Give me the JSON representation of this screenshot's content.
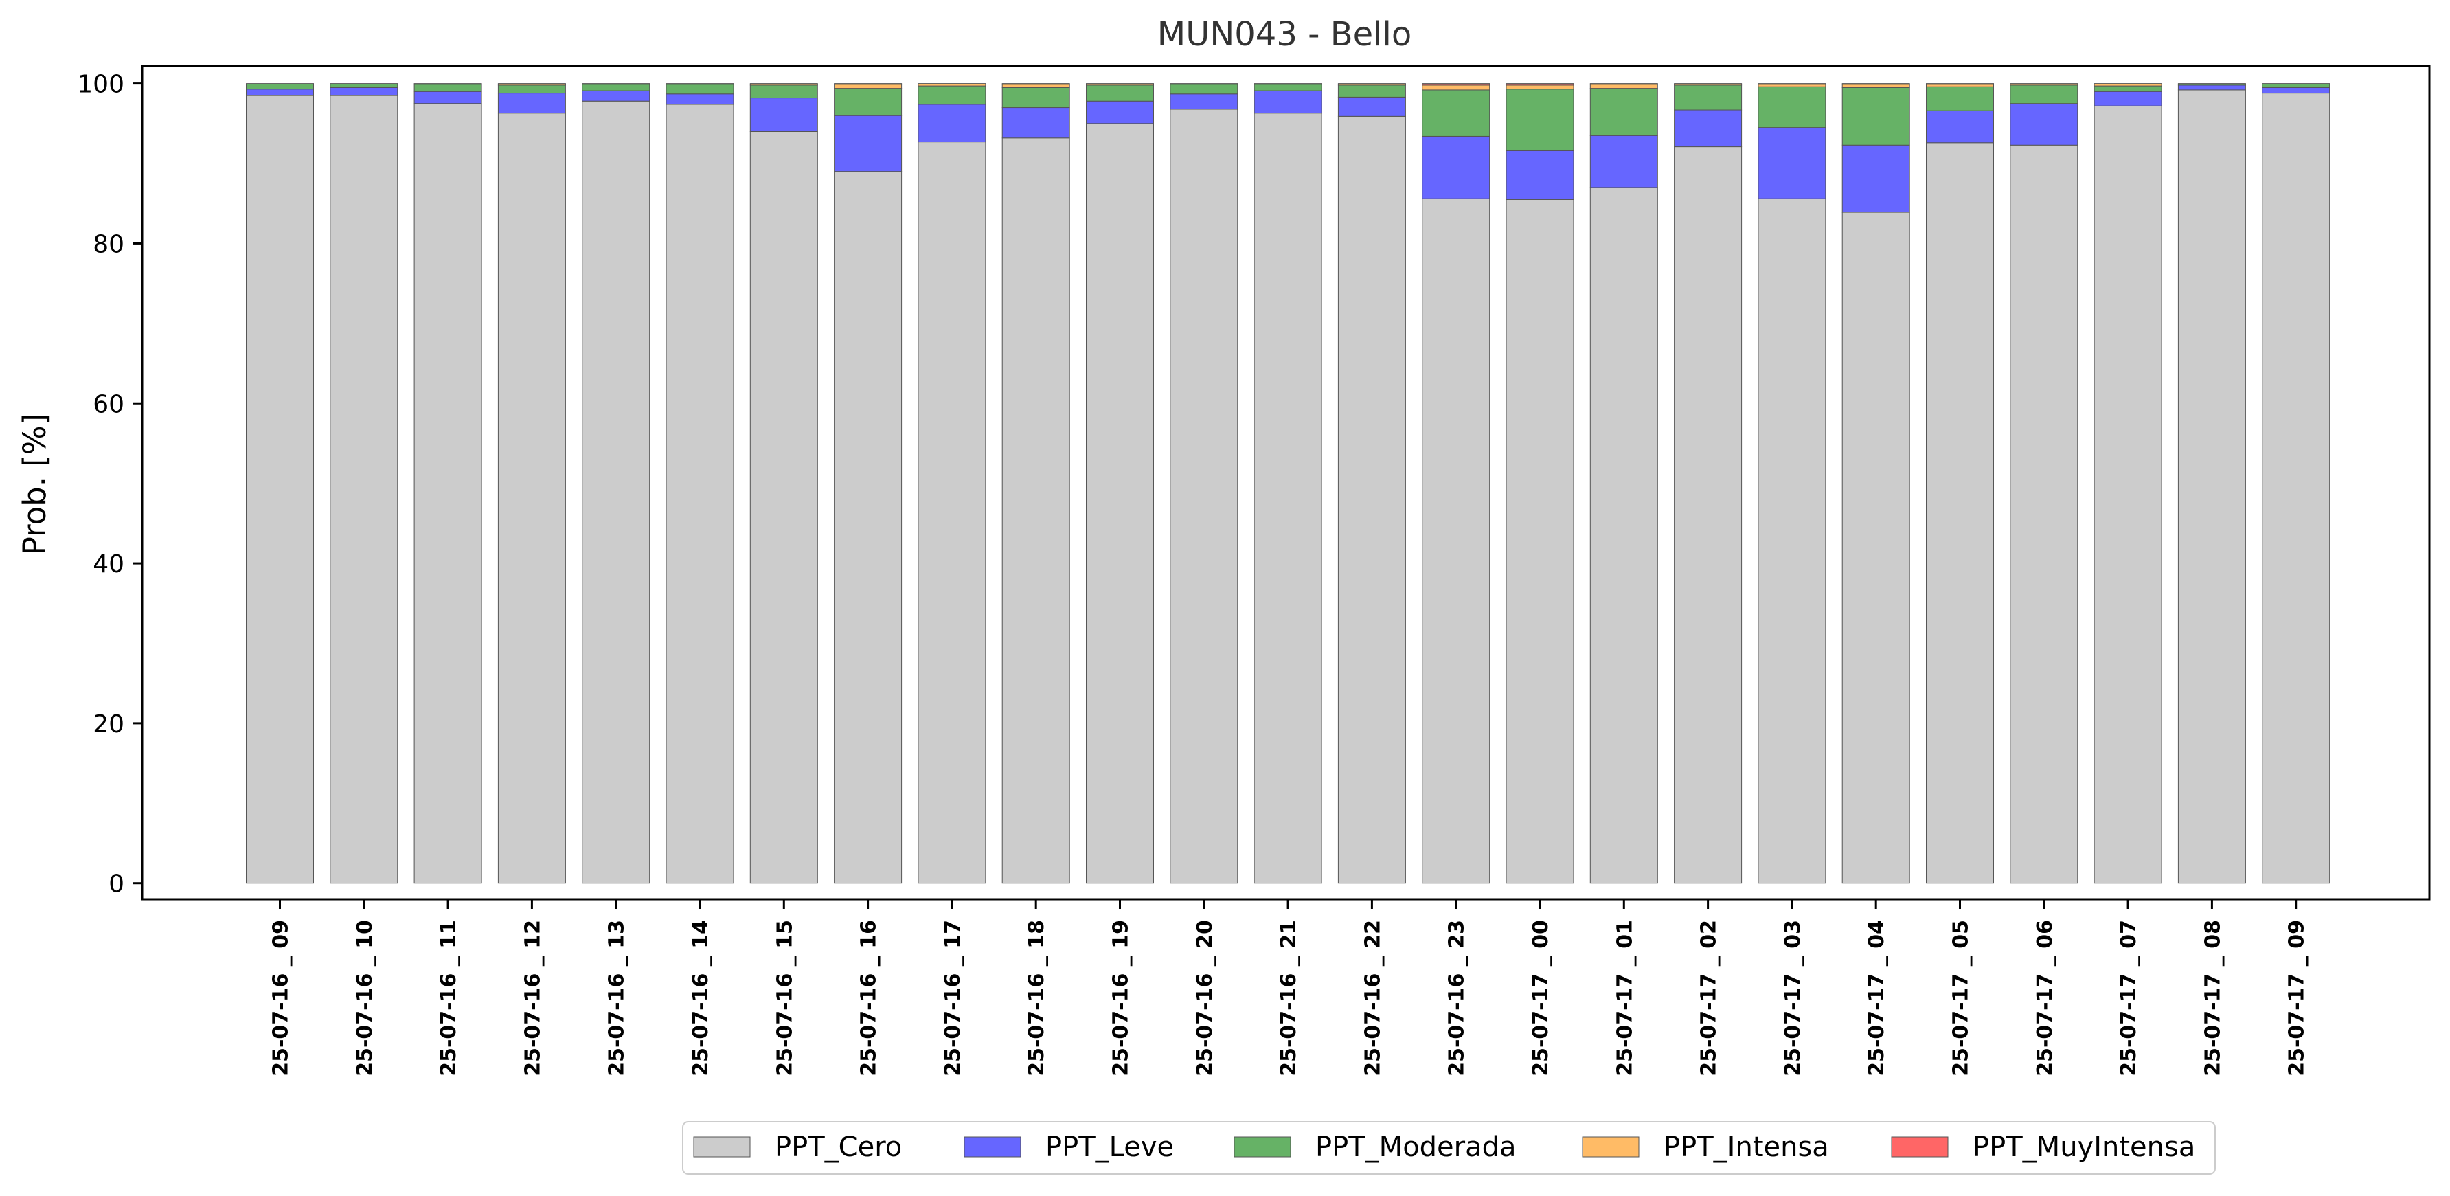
{
  "chart_data": {
    "type": "bar",
    "stacked": true,
    "title": "MUN043 - Bello",
    "xlabel": "",
    "ylabel": "Prob. [%]",
    "ylim": [
      0,
      101
    ],
    "yticks": [
      0,
      20,
      40,
      60,
      80,
      100
    ],
    "grid": false,
    "legend_position": "bottom",
    "categories": [
      "25-07-16 _ 09",
      "25-07-16 _ 10",
      "25-07-16 _ 11",
      "25-07-16 _ 12",
      "25-07-16 _ 13",
      "25-07-16 _ 14",
      "25-07-16 _ 15",
      "25-07-16 _ 16",
      "25-07-16 _ 17",
      "25-07-16 _ 18",
      "25-07-16 _ 19",
      "25-07-16 _ 20",
      "25-07-16 _ 21",
      "25-07-16 _ 22",
      "25-07-16 _ 23",
      "25-07-17 _ 00",
      "25-07-17 _ 01",
      "25-07-17 _ 02",
      "25-07-17 _ 03",
      "25-07-17 _ 04",
      "25-07-17 _ 05",
      "25-07-17 _ 06",
      "25-07-17 _ 07",
      "25-07-17 _ 08",
      "25-07-17 _ 09"
    ],
    "series": [
      {
        "name": "PPT_Cero",
        "color": "#cccccc",
        "values": [
          98.5,
          98.5,
          97.5,
          96.3,
          97.8,
          97.4,
          94.0,
          89.0,
          92.7,
          93.2,
          95.0,
          96.8,
          96.3,
          95.9,
          85.6,
          85.5,
          87.0,
          92.1,
          85.6,
          83.9,
          92.6,
          92.3,
          97.2,
          99.2,
          98.8
        ]
      },
      {
        "name": "PPT_Leve",
        "color": "#6666ff",
        "values": [
          0.8,
          1.0,
          1.5,
          2.5,
          1.3,
          1.3,
          4.2,
          7.0,
          4.7,
          3.8,
          2.8,
          1.9,
          2.8,
          2.4,
          7.8,
          6.1,
          6.5,
          4.6,
          8.9,
          8.4,
          4.0,
          5.2,
          1.8,
          0.6,
          0.7
        ]
      },
      {
        "name": "PPT_Moderada",
        "color": "#66b266",
        "values": [
          0.7,
          0.5,
          0.9,
          1.0,
          0.8,
          1.2,
          1.6,
          3.4,
          2.3,
          2.5,
          2.0,
          1.2,
          0.8,
          1.5,
          5.8,
          7.7,
          5.9,
          3.1,
          5.1,
          7.2,
          3.0,
          2.3,
          0.7,
          0.2,
          0.5
        ]
      },
      {
        "name": "PPT_Intensa",
        "color": "#ffbb66",
        "values": [
          0.0,
          0.0,
          0.1,
          0.2,
          0.1,
          0.1,
          0.2,
          0.5,
          0.3,
          0.4,
          0.2,
          0.1,
          0.1,
          0.2,
          0.6,
          0.5,
          0.5,
          0.2,
          0.3,
          0.4,
          0.3,
          0.2,
          0.3,
          0.0,
          0.0
        ]
      },
      {
        "name": "PPT_MuyIntensa",
        "color": "#ff6666",
        "values": [
          0.0,
          0.0,
          0.0,
          0.0,
          0.0,
          0.0,
          0.0,
          0.1,
          0.0,
          0.1,
          0.0,
          0.0,
          0.0,
          0.0,
          0.2,
          0.2,
          0.1,
          0.0,
          0.1,
          0.1,
          0.1,
          0.0,
          0.0,
          0.0,
          0.0
        ]
      }
    ]
  }
}
